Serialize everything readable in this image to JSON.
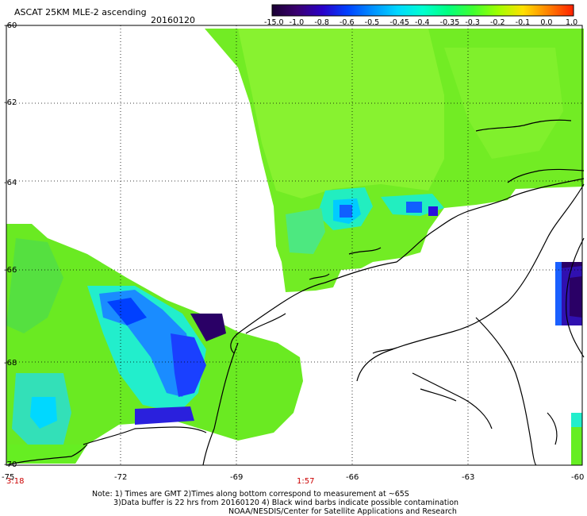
{
  "header": {
    "title": "ASCAT 25KM MLE-2 ascending",
    "date": "20160120"
  },
  "colorbar": {
    "labels": [
      "-15.0",
      "-1.0",
      "-0.8",
      "-0.6",
      "-0.5",
      "-0.45",
      "-0.4",
      "-0.35",
      "-0.3",
      "-0.2",
      "-0.1",
      "0.0",
      "1.0"
    ],
    "colors": [
      "#1a0033",
      "#3a0070",
      "#2a00c8",
      "#0040ff",
      "#0090ff",
      "#00d8ff",
      "#00ffd0",
      "#00ff80",
      "#40ff30",
      "#a0ff00",
      "#ffe000",
      "#ff8000",
      "#ff2000"
    ]
  },
  "map": {
    "lat_labels": [
      "-60",
      "-62",
      "-64",
      "-66",
      "-68",
      "-70"
    ],
    "lon_labels": [
      "-75",
      "-72",
      "-69",
      "-66",
      "-63",
      "-60"
    ],
    "time_labels": [
      "3:18",
      "1:57"
    ],
    "land_color": "#ffffff",
    "ocean_base_color": "#66ee22"
  },
  "notes": {
    "line1": "Note: 1) Times are GMT 2)Times along bottom correspond to measurement at ~65S",
    "line2": "3)Data buffer is 22 hrs from 20160120 4) Black wind barbs indicate possible contamination",
    "line3": "NOAA/NESDIS/Center for Satellite Applications and Research"
  }
}
